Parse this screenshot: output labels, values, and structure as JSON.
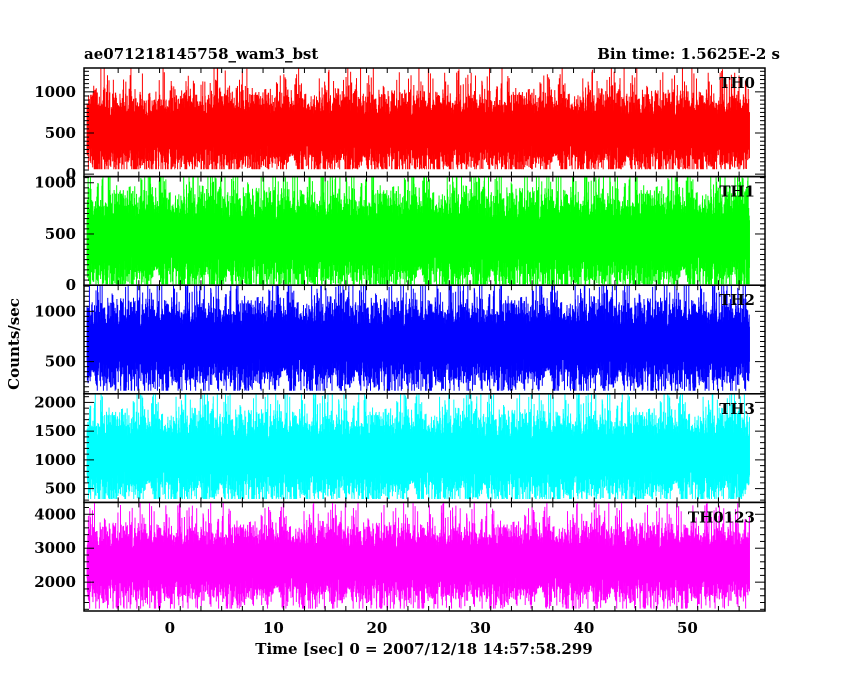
{
  "header": {
    "title": "ae071218145758_wam3_bst",
    "bin_time": "Bin time: 1.5625E-2 s"
  },
  "chart_data": {
    "type": "line",
    "xlabel": "Time [sec] 0 = 2007/12/18 14:57:58.299",
    "ylabel": "Counts/sec",
    "x_range": [
      -8,
      56
    ],
    "xlim": [
      -8.3,
      57.5
    ],
    "x_ticks": [
      0,
      10,
      20,
      30,
      40,
      50
    ],
    "panels": [
      {
        "name": "TH0",
        "color": "#ff0000",
        "ylim": [
          -30,
          1290
        ],
        "y_ticks": [
          0,
          500,
          1000
        ],
        "base": 520,
        "spread": 200,
        "peak": 1300,
        "floor": 60
      },
      {
        "name": "TH1",
        "color": "#00ff00",
        "ylim": [
          0,
          1060
        ],
        "y_ticks": [
          0,
          500,
          1000
        ],
        "base": 450,
        "spread": 200,
        "peak": 1060,
        "floor": 10
      },
      {
        "name": "TH2",
        "color": "#0000ff",
        "ylim": [
          180,
          1260
        ],
        "y_ticks": [
          500,
          1000
        ],
        "base": 680,
        "spread": 180,
        "peak": 1260,
        "floor": 210
      },
      {
        "name": "TH3",
        "color": "#00ffff",
        "ylim": [
          260,
          2150
        ],
        "y_ticks": [
          500,
          1000,
          1500,
          2000
        ],
        "base": 1070,
        "spread": 320,
        "peak": 2150,
        "floor": 320
      },
      {
        "name": "TH0123",
        "color": "#ff00ff",
        "ylim": [
          1150,
          4350
        ],
        "y_ticks": [
          2000,
          3000,
          4000
        ],
        "base": 2550,
        "spread": 480,
        "peak": 4350,
        "floor": 1220
      }
    ]
  }
}
